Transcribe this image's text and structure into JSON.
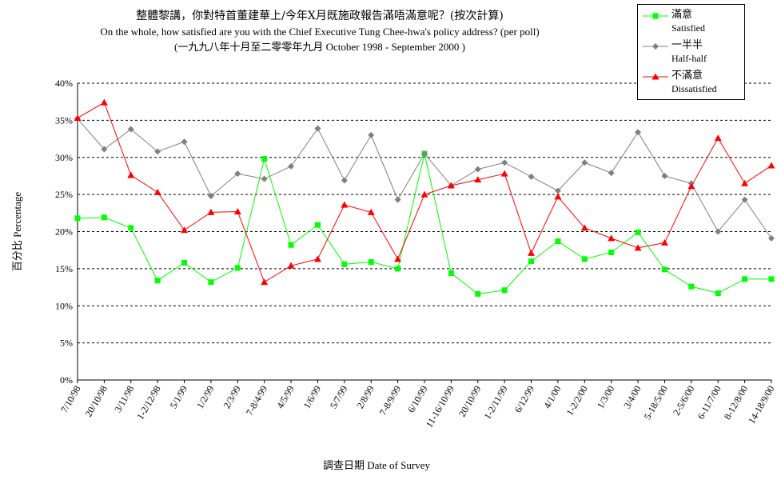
{
  "chart_data": {
    "type": "line",
    "title": "整體黎講，你對特首董建華上/今年X月既施政報告滿唔滿意呢？(按次計算)",
    "subtitle": "On the whole, how satisfied are you with the Chief Executive Tung Chee-hwa's policy address? (per poll)",
    "period": "(一九九八年十月至二零零年九月 October 1998 - September 2000 )",
    "xlabel": "調查日期 Date of Survey",
    "ylabel": "百分比 Percentage",
    "ylim": [
      0,
      40
    ],
    "yticks": [
      "0%",
      "5%",
      "10%",
      "15%",
      "20%",
      "25%",
      "30%",
      "35%",
      "40%"
    ],
    "grid": "horizontal dashed",
    "legend_position": "top-right",
    "categories": [
      "7/10/98",
      "20/10/98",
      "3/11/98",
      "1-2/12/98",
      "5/1/99",
      "1/2/99",
      "2/3/99",
      "7-8/4/99",
      "4/5/99",
      "1/6/99",
      "5/7/99",
      "2/8/99",
      "7-8/9/99",
      "6/10/99",
      "11-16/10/99",
      "20/10/99",
      "1-2/11/99",
      "6/12/99",
      "4/1/00",
      "1-2/2/00",
      "1/3/00",
      "3/4/00",
      "5-18/5/00",
      "2-5/6/00",
      "6-11/7/00",
      "8-12/8/00",
      "14-18/9/00"
    ],
    "series": [
      {
        "name": "滿意",
        "subname": "Satisfied",
        "color": "#00ff00",
        "marker": "square",
        "values": [
          21.8,
          21.9,
          20.5,
          13.4,
          15.8,
          13.2,
          15.1,
          29.8,
          18.2,
          20.9,
          15.6,
          15.9,
          15.0,
          30.5,
          14.4,
          11.6,
          12.1,
          16.0,
          18.7,
          16.3,
          17.2,
          19.9,
          14.9,
          12.6,
          11.7,
          13.6,
          13.6
        ]
      },
      {
        "name": "一半半",
        "subname": "Half-half",
        "color": "#808080",
        "marker": "diamond",
        "values": [
          35.2,
          31.1,
          33.8,
          30.8,
          32.1,
          24.8,
          27.8,
          27.1,
          28.8,
          33.9,
          26.9,
          33.0,
          24.3,
          30.5,
          26.2,
          28.4,
          29.3,
          27.4,
          25.5,
          29.3,
          27.9,
          33.4,
          27.5,
          26.5,
          20.0,
          24.3,
          19.1
        ]
      },
      {
        "name": "不滿意",
        "subname": "Dissatisfied",
        "color": "#ff0000",
        "marker": "triangle",
        "values": [
          35.3,
          37.4,
          27.6,
          25.3,
          20.2,
          22.6,
          22.7,
          13.2,
          15.4,
          16.3,
          23.6,
          22.6,
          16.3,
          25.0,
          26.2,
          27.0,
          27.8,
          17.1,
          24.7,
          20.5,
          19.1,
          17.8,
          18.5,
          26.1,
          32.6,
          26.5,
          28.9
        ]
      }
    ]
  }
}
